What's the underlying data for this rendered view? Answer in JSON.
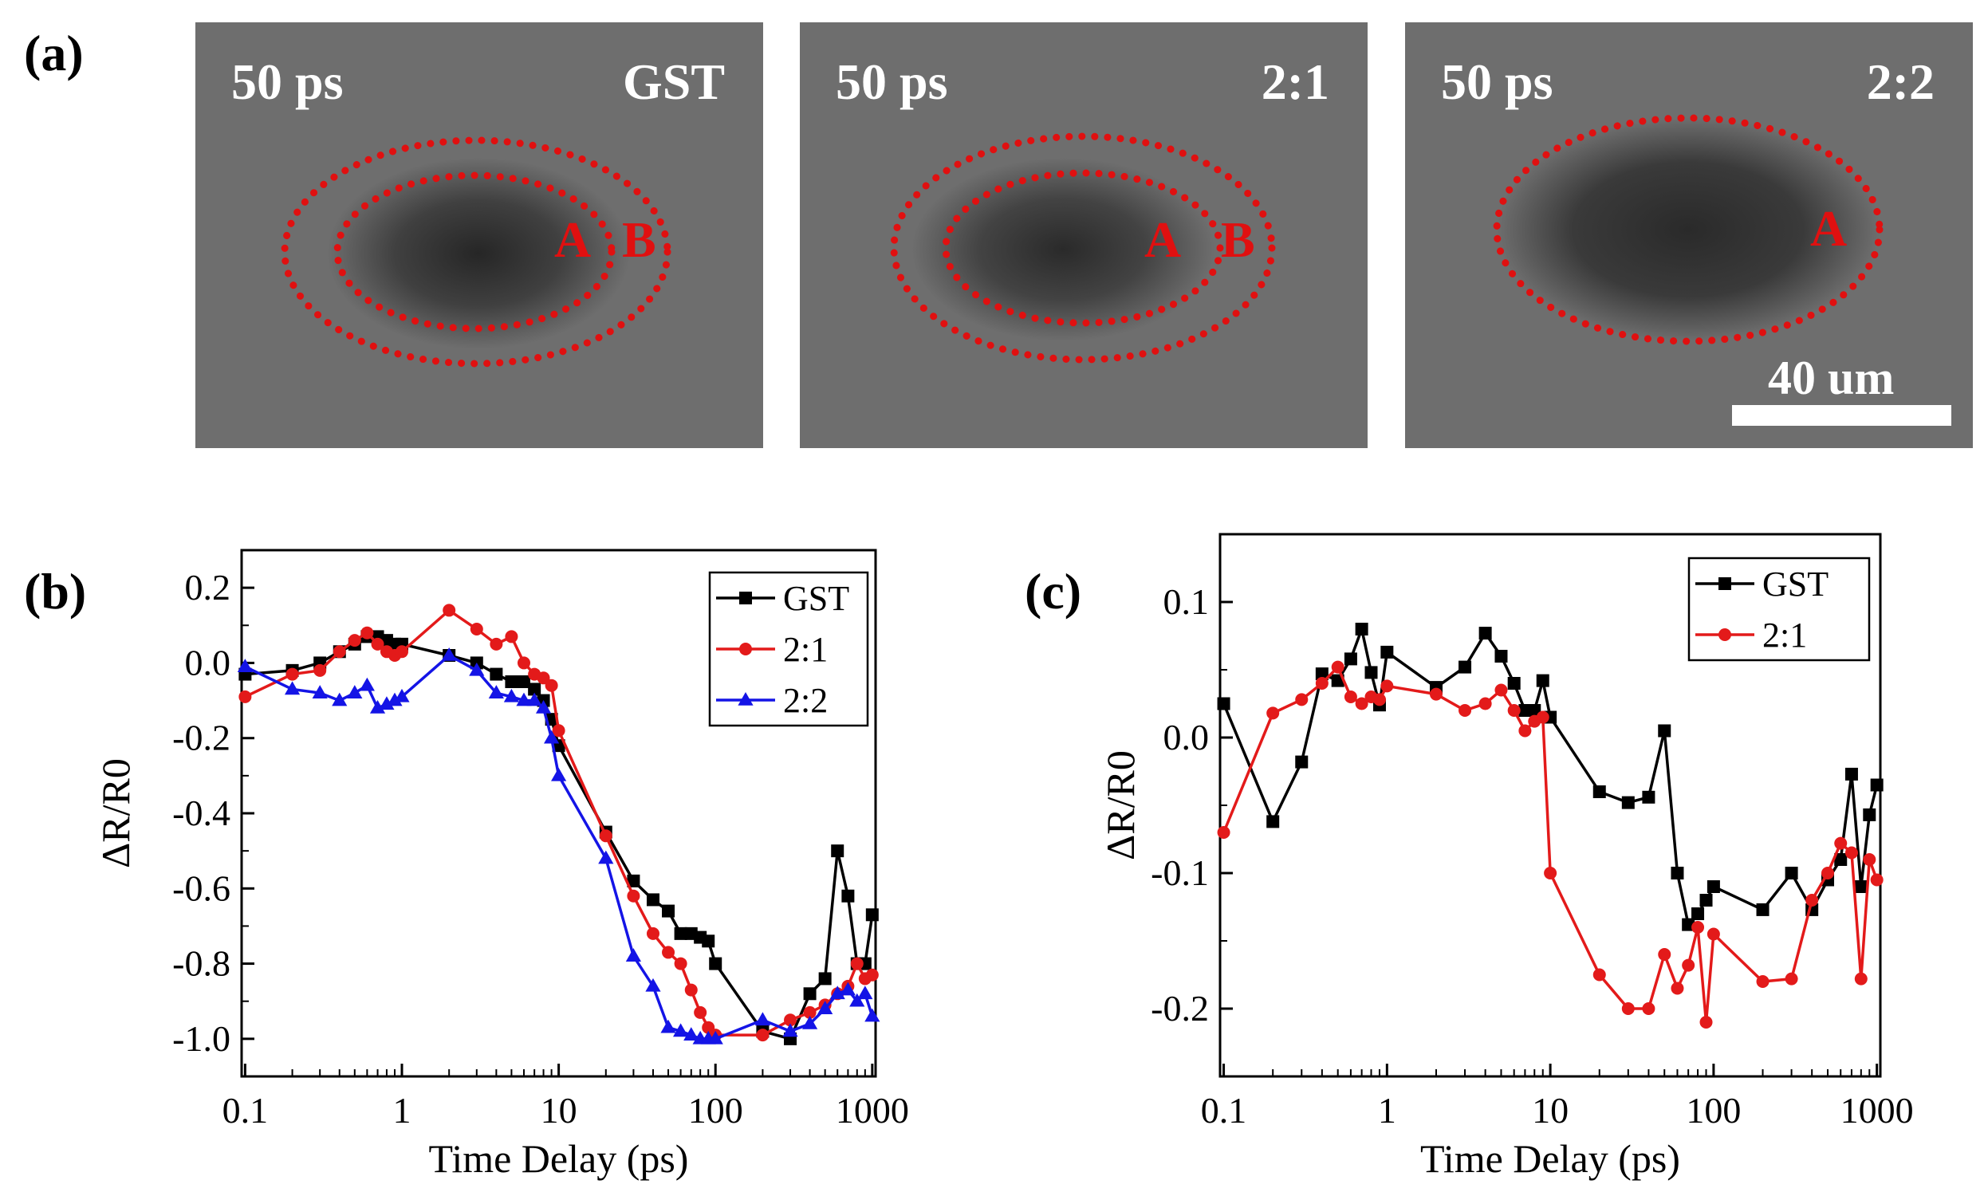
{
  "panels": {
    "a_label": "(a)",
    "b_label": "(b)",
    "c_label": "(c)"
  },
  "images": [
    {
      "time": "50 ps",
      "sample": "GST",
      "regions": [
        "A",
        "B"
      ]
    },
    {
      "time": "50 ps",
      "sample": "2:1",
      "regions": [
        "A",
        "B"
      ]
    },
    {
      "time": "50 ps",
      "sample": "2:2",
      "regions": [
        "A"
      ],
      "scale": "40 um"
    }
  ],
  "colors": {
    "GST": "#000000",
    "2:1": "#e31a1a",
    "2:2": "#1414e6",
    "ellipse": "#e01010"
  },
  "chart_data": [
    {
      "type": "line",
      "panel": "(b)",
      "xlabel": "Time Delay (ps)",
      "ylabel": "ΔR/R0",
      "xscale": "log",
      "xlim": [
        0.095,
        1050
      ],
      "ylim": [
        -1.1,
        0.3
      ],
      "xticks": [
        0.1,
        1,
        10,
        100,
        1000
      ],
      "xtick_labels": [
        "0.1",
        "1",
        "10",
        "100",
        "1000"
      ],
      "yticks": [
        0.2,
        0.0,
        -0.2,
        -0.4,
        -0.6,
        -0.8,
        -1.0
      ],
      "ytick_labels": [
        "0.2",
        "0.0",
        "-0.2",
        "-0.4",
        "-0.6",
        "-0.8",
        "-1.0"
      ],
      "legend_position": "top-right",
      "series": [
        {
          "name": "GST",
          "marker": "square",
          "x": [
            0.1,
            0.2,
            0.3,
            0.4,
            0.5,
            0.6,
            0.7,
            0.8,
            0.9,
            1,
            2,
            3,
            4,
            5,
            6,
            7,
            8,
            9,
            10,
            20,
            30,
            40,
            50,
            60,
            70,
            80,
            90,
            100,
            200,
            300,
            400,
            500,
            600,
            700,
            800,
            900,
            1000
          ],
          "y": [
            -0.03,
            -0.02,
            0.0,
            0.03,
            0.05,
            0.07,
            0.07,
            0.06,
            0.05,
            0.05,
            0.02,
            0.0,
            -0.03,
            -0.05,
            -0.05,
            -0.07,
            -0.1,
            -0.15,
            -0.22,
            -0.45,
            -0.58,
            -0.63,
            -0.66,
            -0.72,
            -0.72,
            -0.73,
            -0.74,
            -0.8,
            -0.98,
            -1.0,
            -0.88,
            -0.84,
            -0.5,
            -0.62,
            -0.8,
            -0.8,
            -0.67
          ]
        },
        {
          "name": "2:1",
          "marker": "circle",
          "x": [
            0.1,
            0.2,
            0.3,
            0.4,
            0.5,
            0.6,
            0.7,
            0.8,
            0.9,
            1,
            2,
            3,
            4,
            5,
            6,
            7,
            8,
            9,
            10,
            20,
            30,
            40,
            50,
            60,
            70,
            80,
            90,
            100,
            200,
            300,
            400,
            500,
            600,
            700,
            800,
            900,
            1000
          ],
          "y": [
            -0.09,
            -0.03,
            -0.02,
            0.03,
            0.06,
            0.08,
            0.05,
            0.03,
            0.02,
            0.03,
            0.14,
            0.09,
            0.05,
            0.07,
            0.0,
            -0.03,
            -0.04,
            -0.06,
            -0.18,
            -0.46,
            -0.62,
            -0.72,
            -0.77,
            -0.8,
            -0.87,
            -0.93,
            -0.97,
            -0.99,
            -0.99,
            -0.95,
            -0.93,
            -0.91,
            -0.88,
            -0.86,
            -0.8,
            -0.84,
            -0.83
          ]
        },
        {
          "name": "2:2",
          "marker": "triangle",
          "x": [
            0.1,
            0.2,
            0.3,
            0.4,
            0.5,
            0.6,
            0.7,
            0.8,
            0.9,
            1,
            2,
            3,
            4,
            5,
            6,
            7,
            8,
            9,
            10,
            20,
            30,
            40,
            50,
            60,
            70,
            80,
            90,
            100,
            200,
            300,
            400,
            500,
            600,
            700,
            800,
            900,
            1000
          ],
          "y": [
            -0.01,
            -0.07,
            -0.08,
            -0.1,
            -0.08,
            -0.06,
            -0.12,
            -0.11,
            -0.1,
            -0.09,
            0.02,
            -0.02,
            -0.08,
            -0.09,
            -0.1,
            -0.1,
            -0.12,
            -0.2,
            -0.3,
            -0.52,
            -0.78,
            -0.86,
            -0.97,
            -0.98,
            -0.99,
            -1.0,
            -1.0,
            -1.0,
            -0.95,
            -0.98,
            -0.96,
            -0.92,
            -0.88,
            -0.87,
            -0.9,
            -0.88,
            -0.94
          ]
        }
      ]
    },
    {
      "type": "line",
      "panel": "(c)",
      "xlabel": "Time Delay (ps)",
      "ylabel": "ΔR/R0",
      "xscale": "log",
      "xlim": [
        0.095,
        1050
      ],
      "ylim": [
        -0.25,
        0.15
      ],
      "xticks": [
        0.1,
        1,
        10,
        100,
        1000
      ],
      "xtick_labels": [
        "0.1",
        "1",
        "10",
        "100",
        "1000"
      ],
      "yticks": [
        0.1,
        0.0,
        -0.1,
        -0.2
      ],
      "ytick_labels": [
        "0.1",
        "0.0",
        "-0.1",
        "-0.2"
      ],
      "legend_position": "top-center",
      "series": [
        {
          "name": "GST",
          "marker": "square",
          "x": [
            0.1,
            0.2,
            0.3,
            0.4,
            0.5,
            0.6,
            0.7,
            0.8,
            0.9,
            1,
            2,
            3,
            4,
            5,
            6,
            7,
            8,
            9,
            10,
            20,
            30,
            40,
            50,
            60,
            70,
            80,
            90,
            100,
            200,
            300,
            400,
            500,
            600,
            700,
            800,
            900,
            1000
          ],
          "y": [
            0.025,
            -0.062,
            -0.018,
            0.047,
            0.042,
            0.058,
            0.08,
            0.048,
            0.024,
            0.063,
            0.037,
            0.052,
            0.077,
            0.06,
            0.04,
            0.02,
            0.02,
            0.042,
            0.015,
            -0.04,
            -0.048,
            -0.044,
            0.005,
            -0.1,
            -0.138,
            -0.13,
            -0.12,
            -0.11,
            -0.127,
            -0.1,
            -0.127,
            -0.105,
            -0.09,
            -0.027,
            -0.11,
            -0.057,
            -0.035
          ]
        },
        {
          "name": "2:1",
          "marker": "circle",
          "x": [
            0.1,
            0.2,
            0.3,
            0.4,
            0.5,
            0.6,
            0.7,
            0.8,
            0.9,
            1,
            2,
            3,
            4,
            5,
            6,
            7,
            8,
            9,
            10,
            20,
            30,
            40,
            50,
            60,
            70,
            80,
            90,
            100,
            200,
            300,
            400,
            500,
            600,
            700,
            800,
            900,
            1000
          ],
          "y": [
            -0.07,
            0.018,
            0.028,
            0.04,
            0.052,
            0.03,
            0.025,
            0.03,
            0.028,
            0.038,
            0.032,
            0.02,
            0.025,
            0.035,
            0.02,
            0.005,
            0.012,
            0.015,
            -0.1,
            -0.175,
            -0.2,
            -0.2,
            -0.16,
            -0.185,
            -0.168,
            -0.14,
            -0.21,
            -0.145,
            -0.18,
            -0.178,
            -0.12,
            -0.1,
            -0.078,
            -0.085,
            -0.178,
            -0.09,
            -0.105
          ]
        }
      ]
    }
  ]
}
